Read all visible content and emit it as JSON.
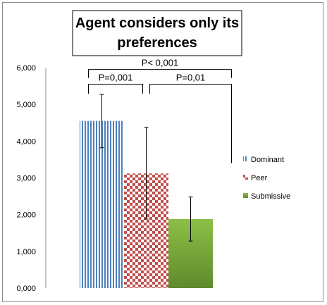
{
  "chart_data": {
    "type": "bar",
    "title_lines": [
      "Agent considers only its",
      "preferences"
    ],
    "categories": [
      "Dominant",
      "Peer",
      "Submissive"
    ],
    "series": [
      {
        "name": "Dominant",
        "value": 4.55,
        "err_low": 3.82,
        "err_high": 5.27,
        "color": "#4f81bd"
      },
      {
        "name": "Peer",
        "value": 3.12,
        "err_low": 1.88,
        "err_high": 4.38,
        "color": "#c0504d"
      },
      {
        "name": "Submissive",
        "value": 1.88,
        "err_low": 1.28,
        "err_high": 2.48,
        "color": "#7aa93a"
      }
    ],
    "yticks": [
      "0,000",
      "1,000",
      "2,000",
      "3,000",
      "4,000",
      "5,000",
      "6,000"
    ],
    "ylim": [
      0,
      6
    ],
    "xlabel": "",
    "ylabel": "",
    "grid": false,
    "legend_position": "right",
    "annotations": [
      {
        "text": "P=0,001",
        "from": "Dominant",
        "to": "Peer",
        "level": 5.55,
        "tick_to": 5.29
      },
      {
        "text": "P=0,01",
        "from": "Peer",
        "to": "Submissive",
        "level": 5.55,
        "tick_to": 3.4
      },
      {
        "text": "P< 0,001",
        "from": "Dominant",
        "to": "Submissive",
        "level": 5.95,
        "tick_to": 5.72
      }
    ]
  }
}
